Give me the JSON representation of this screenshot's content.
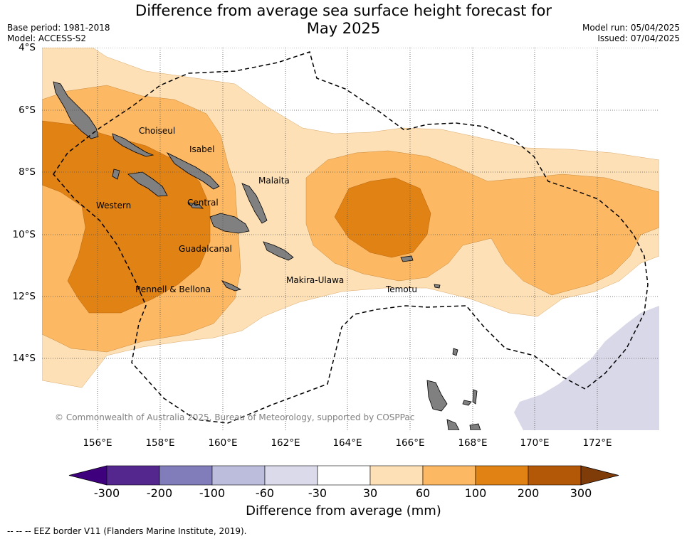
{
  "title": {
    "line1": "Difference from average sea surface height forecast for",
    "line2": "May 2025"
  },
  "meta": {
    "base_period": "Base period: 1981-2018",
    "model": "Model: ACCESS-S2",
    "model_run": "Model run: 05/04/2025",
    "issued": "Issued: 07/04/2025"
  },
  "axes": {
    "latitudes": [
      "4°S",
      "6°S",
      "8°S",
      "10°S",
      "12°S",
      "14°S"
    ],
    "longitudes": [
      "156°E",
      "158°E",
      "160°E",
      "162°E",
      "164°E",
      "166°E",
      "168°E",
      "170°E",
      "172°E"
    ]
  },
  "regions": [
    {
      "name": "Choiseul"
    },
    {
      "name": "Isabel"
    },
    {
      "name": "Malaita"
    },
    {
      "name": "Western"
    },
    {
      "name": "Central"
    },
    {
      "name": "Guadalcanal"
    },
    {
      "name": "Makira-Ulawa"
    },
    {
      "name": "Rennell & Bellona"
    },
    {
      "name": "Temotu"
    }
  ],
  "copyright": "© Commonwealth of Australia 2025, Bureau of Meteorology, supported by COSPPac",
  "colorbar": {
    "ticks": [
      "-300",
      "-200",
      "-100",
      "-60",
      "-30",
      "30",
      "60",
      "100",
      "200",
      "300"
    ],
    "colors": [
      "#3f007d",
      "#54278f",
      "#807dba",
      "#bcbddc",
      "#dadaeb",
      "#ffffff",
      "#fee0b6",
      "#fdb863",
      "#e08214",
      "#b35806",
      "#7f3b08"
    ],
    "title": "Difference from average (mm)"
  },
  "eez_note": "-- -- -- EEZ border V11 (Flanders Marine Institute, 2019)."
}
